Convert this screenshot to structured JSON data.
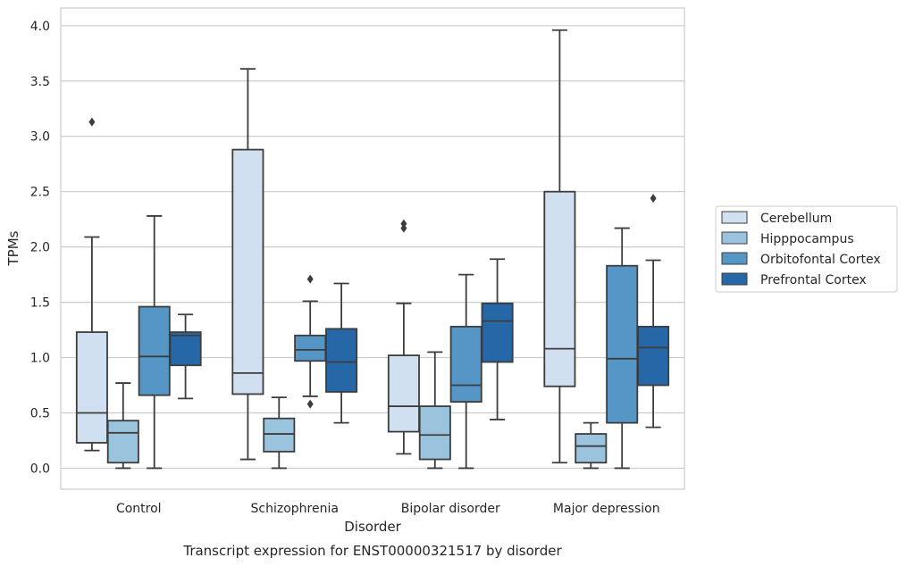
{
  "chart_data": {
    "type": "box",
    "caption": "Transcript expression for ENST00000321517 by disorder",
    "xlabel": "Disorder",
    "ylabel": "TPMs",
    "ylim": [
      -0.19,
      4.16
    ],
    "yticks": [
      "0.0",
      "0.5",
      "1.0",
      "1.5",
      "2.0",
      "2.5",
      "3.0",
      "3.5",
      "4.0"
    ],
    "grid": "horizontal",
    "legend_position": "right",
    "categories": [
      "Control",
      "Schizophrenia",
      "Bipolar disorder",
      "Major depression"
    ],
    "series": [
      {
        "name": "Cerebellum",
        "color": "#d1e0f0",
        "boxes": [
          {
            "whislo": 0.16,
            "q1": 0.23,
            "med": 0.5,
            "q3": 1.23,
            "whishi": 2.09,
            "fliers": [
              3.13
            ]
          },
          {
            "whislo": 0.08,
            "q1": 0.67,
            "med": 0.86,
            "q3": 2.88,
            "whishi": 3.61,
            "fliers": []
          },
          {
            "whislo": 0.13,
            "q1": 0.33,
            "med": 0.56,
            "q3": 1.02,
            "whishi": 1.49,
            "fliers": [
              2.17,
              2.21
            ]
          },
          {
            "whislo": 0.05,
            "q1": 0.74,
            "med": 1.08,
            "q3": 2.5,
            "whishi": 3.96,
            "fliers": []
          }
        ]
      },
      {
        "name": "Hipppocampus",
        "color": "#9ac3dd",
        "boxes": [
          {
            "whislo": 0.0,
            "q1": 0.05,
            "med": 0.32,
            "q3": 0.43,
            "whishi": 0.77,
            "fliers": []
          },
          {
            "whislo": 0.0,
            "q1": 0.15,
            "med": 0.31,
            "q3": 0.45,
            "whishi": 0.64,
            "fliers": []
          },
          {
            "whislo": 0.0,
            "q1": 0.08,
            "med": 0.3,
            "q3": 0.56,
            "whishi": 1.05,
            "fliers": []
          },
          {
            "whislo": 0.0,
            "q1": 0.05,
            "med": 0.2,
            "q3": 0.31,
            "whishi": 0.41,
            "fliers": []
          }
        ]
      },
      {
        "name": "Orbitofontal Cortex",
        "color": "#5596c6",
        "boxes": [
          {
            "whislo": 0.0,
            "q1": 0.66,
            "med": 1.01,
            "q3": 1.46,
            "whishi": 2.28,
            "fliers": []
          },
          {
            "whislo": 0.65,
            "q1": 0.97,
            "med": 1.07,
            "q3": 1.2,
            "whishi": 1.51,
            "fliers": [
              0.58,
              1.71
            ]
          },
          {
            "whislo": 0.0,
            "q1": 0.6,
            "med": 0.75,
            "q3": 1.28,
            "whishi": 1.75,
            "fliers": []
          },
          {
            "whislo": 0.0,
            "q1": 0.41,
            "med": 0.99,
            "q3": 1.83,
            "whishi": 2.17,
            "fliers": []
          }
        ]
      },
      {
        "name": "Prefrontal Cortex",
        "color": "#2667a7",
        "boxes": [
          {
            "whislo": 0.63,
            "q1": 0.93,
            "med": 1.2,
            "q3": 1.23,
            "whishi": 1.39,
            "fliers": []
          },
          {
            "whislo": 0.41,
            "q1": 0.69,
            "med": 0.96,
            "q3": 1.26,
            "whishi": 1.67,
            "fliers": []
          },
          {
            "whislo": 0.44,
            "q1": 0.96,
            "med": 1.33,
            "q3": 1.49,
            "whishi": 1.89,
            "fliers": []
          },
          {
            "whislo": 0.37,
            "q1": 0.75,
            "med": 1.09,
            "q3": 1.28,
            "whishi": 1.88,
            "fliers": [
              2.44
            ]
          }
        ]
      }
    ]
  }
}
